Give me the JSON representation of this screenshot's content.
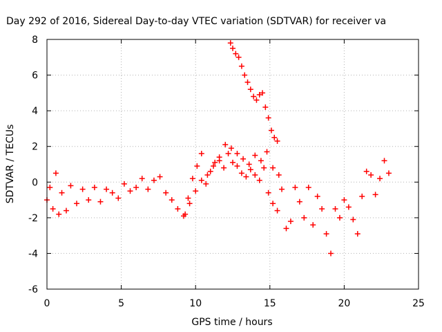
{
  "chart_data": {
    "type": "scatter",
    "title": "Day 292 of 2016, Sidereal Day-to-day VTEC variation (SDTVAR) for receiver va",
    "xlabel": "GPS time / hours",
    "ylabel": "SDTVAR / TECUs",
    "xlim": [
      0,
      25
    ],
    "ylim": [
      -6,
      8
    ],
    "xticks": [
      "0",
      "5",
      "10",
      "15",
      "20",
      "25"
    ],
    "yticks": [
      "-6",
      "-4",
      "-2",
      "0",
      "2",
      "4",
      "6",
      "8"
    ],
    "grid": true,
    "marker": "plus",
    "color": "#ff0000",
    "series": [
      {
        "x": [
          0.0,
          0.2,
          0.4,
          0.6,
          0.8,
          1.0,
          1.3,
          1.6,
          2.0,
          2.4,
          2.8,
          3.2,
          3.6,
          4.0,
          4.4,
          4.8,
          5.2,
          5.6,
          6.0,
          6.4,
          6.8,
          7.2,
          7.6,
          8.0,
          8.4,
          8.8,
          9.2,
          9.5,
          9.8,
          10.1,
          10.4,
          10.7,
          11.0,
          11.3,
          11.6,
          11.9,
          12.2,
          12.5,
          12.8,
          13.1,
          13.4,
          13.7,
          14.0,
          14.3,
          14.6,
          14.9,
          15.2,
          15.5,
          15.8,
          16.1,
          16.4,
          16.7,
          17.0,
          17.3,
          17.6,
          17.9,
          18.2,
          18.5,
          18.8,
          19.1,
          19.4,
          19.7,
          20.0,
          20.3,
          20.6,
          20.9,
          21.2,
          21.5,
          21.8,
          22.1,
          22.4,
          22.7,
          23.0
        ],
        "y": [
          -1.0,
          -0.3,
          -1.5,
          0.5,
          -1.8,
          -0.6,
          -1.6,
          -0.2,
          -1.2,
          -0.4,
          -1.0,
          -0.3,
          -1.1,
          -0.4,
          -0.6,
          -0.9,
          -0.1,
          -0.5,
          -0.3,
          0.2,
          -0.4,
          0.1,
          0.3,
          -0.6,
          -1.0,
          -1.5,
          -1.9,
          -0.9,
          0.2,
          0.9,
          1.6,
          -0.1,
          0.6,
          1.1,
          1.4,
          0.8,
          1.6,
          1.1,
          0.9,
          0.5,
          0.3,
          0.7,
          0.4,
          0.1,
          0.8,
          -0.6,
          -1.2,
          -1.6,
          -0.4,
          -2.6,
          -2.2,
          -0.3,
          -1.1,
          -2.0,
          -0.3,
          -2.4,
          -0.8,
          -1.5,
          -2.9,
          -4.0,
          -1.5,
          -2.0,
          -1.0,
          -1.4,
          -2.1,
          -2.9,
          -0.8,
          0.6,
          0.4,
          -0.7,
          0.2,
          1.2,
          0.5
        ]
      },
      {
        "x": [
          9.3,
          9.6,
          10.0,
          10.4,
          10.8,
          11.2,
          11.6,
          12.0,
          12.4,
          12.8,
          13.2,
          13.6,
          14.0,
          14.4,
          14.8,
          15.2,
          15.6
        ],
        "y": [
          -1.8,
          -1.2,
          -0.5,
          0.1,
          0.4,
          0.9,
          1.2,
          2.1,
          1.9,
          1.6,
          1.3,
          1.0,
          1.5,
          1.2,
          1.7,
          0.8,
          0.4
        ]
      },
      {
        "x": [
          12.35,
          12.5,
          12.7,
          12.9,
          13.1,
          13.3,
          13.5,
          13.7,
          13.9,
          14.1,
          14.3,
          14.5,
          14.7,
          14.9,
          15.1,
          15.3,
          15.5
        ],
        "y": [
          7.8,
          7.5,
          7.2,
          7.0,
          6.5,
          6.0,
          5.6,
          5.2,
          4.8,
          4.6,
          4.9,
          5.0,
          4.2,
          3.6,
          2.9,
          2.5,
          2.3
        ]
      }
    ]
  }
}
